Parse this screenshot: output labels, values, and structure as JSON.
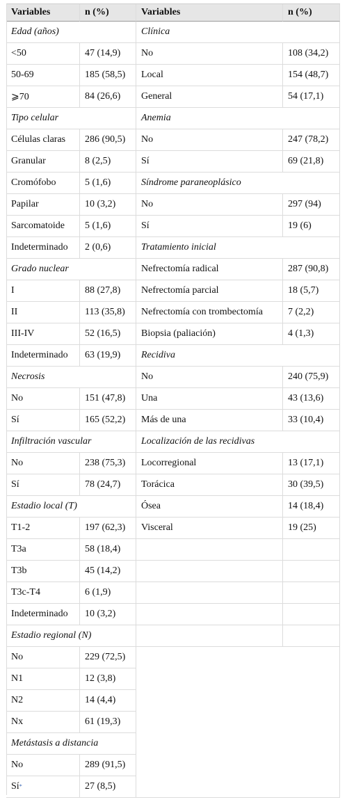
{
  "headers": {
    "left_variables": "Variables",
    "left_n": "n (%)",
    "right_variables": "Variables",
    "right_n": "n (%)"
  },
  "left_rows": [
    {
      "section": "Edad (años)"
    },
    {
      "label": "<50",
      "value": "47 (14,9)"
    },
    {
      "label": "50-69",
      "value": "185 (58,5)"
    },
    {
      "label": "⩾70",
      "value": "84 (26,6)"
    },
    {
      "section": "Tipo celular"
    },
    {
      "label": "Células claras",
      "value": "286 (90,5)"
    },
    {
      "label": "Granular",
      "value": "8 (2,5)"
    },
    {
      "label": "Cromófobo",
      "value": "5 (1,6)"
    },
    {
      "label": "Papilar",
      "value": "10 (3,2)"
    },
    {
      "label": "Sarcomatoide",
      "value": "5 (1,6)"
    },
    {
      "label": "Indeterminado",
      "value": "2 (0,6)"
    },
    {
      "section": "Grado nuclear"
    },
    {
      "label": "I",
      "value": "88 (27,8)"
    },
    {
      "label": "II",
      "value": "113 (35,8)"
    },
    {
      "label": "III-IV",
      "value": "52 (16,5)"
    },
    {
      "label": "Indeterminado",
      "value": "63 (19,9)"
    },
    {
      "section": "Necrosis"
    },
    {
      "label": "No",
      "value": "151 (47,8)"
    },
    {
      "label": "Sí",
      "value": "165 (52,2)"
    },
    {
      "section": "Infiltración vascular"
    },
    {
      "label": "No",
      "value": "238 (75,3)"
    },
    {
      "label": "Sí",
      "value": "78 (24,7)"
    },
    {
      "section": "Estadio local (T)"
    },
    {
      "label": "T1-2",
      "value": "197 (62,3)"
    },
    {
      "label": "T3a",
      "value": "58 (18,4)"
    },
    {
      "label": "T3b",
      "value": "45 (14,2)"
    },
    {
      "label": "T3c-T4",
      "value": "6 (1,9)"
    },
    {
      "label": "Indeterminado",
      "value": "10 (3,2)"
    },
    {
      "section": "Estadio regional (N)"
    },
    {
      "label": "No",
      "value": "229 (72,5)"
    },
    {
      "label": "N1",
      "value": "12 (3,8)"
    },
    {
      "label": "N2",
      "value": "14 (4,4)"
    },
    {
      "label": "Nx",
      "value": "61 (19,3)"
    },
    {
      "section": "Metástasis a distancia"
    },
    {
      "label": "No",
      "value": "289 (91,5)"
    },
    {
      "label": "Sí",
      "sup": "*",
      "value": "27 (8,5)"
    }
  ],
  "right_rows": [
    {
      "section": "Clínica"
    },
    {
      "label": "No",
      "value": "108 (34,2)"
    },
    {
      "label": "Local",
      "value": "154 (48,7)"
    },
    {
      "label": "General",
      "value": "54 (17,1)"
    },
    {
      "section": "Anemia"
    },
    {
      "label": "No",
      "value": "247 (78,2)"
    },
    {
      "label": "Sí",
      "value": "69 (21,8)"
    },
    {
      "section": "Síndrome paraneoplásico"
    },
    {
      "label": "No",
      "value": "297 (94)"
    },
    {
      "label": "Sí",
      "value": "19 (6)"
    },
    {
      "section": "Tratamiento inicial"
    },
    {
      "label": "Nefrectomía radical",
      "value": "287 (90,8)"
    },
    {
      "label": "Nefrectomía parcial",
      "value": "18 (5,7)"
    },
    {
      "label": "Nefrectomía con trombectomía",
      "value": "7 (2,2)"
    },
    {
      "label": "Biopsia (paliación)",
      "value": "4 (1,3)"
    },
    {
      "section": "Recidiva"
    },
    {
      "label": "No",
      "value": "240 (75,9)"
    },
    {
      "label": "Una",
      "value": "43 (13,6)"
    },
    {
      "label": "Más de una",
      "value": "33 (10,4)"
    },
    {
      "section": "Localización de las recidivas"
    },
    {
      "label": "Locorregional",
      "value": "13 (17,1)"
    },
    {
      "label": "Torácica",
      "value": "30 (39,5)"
    },
    {
      "label": "Ósea",
      "value": "14 (18,4)"
    },
    {
      "label": "Visceral",
      "value": "19 (25)"
    }
  ]
}
